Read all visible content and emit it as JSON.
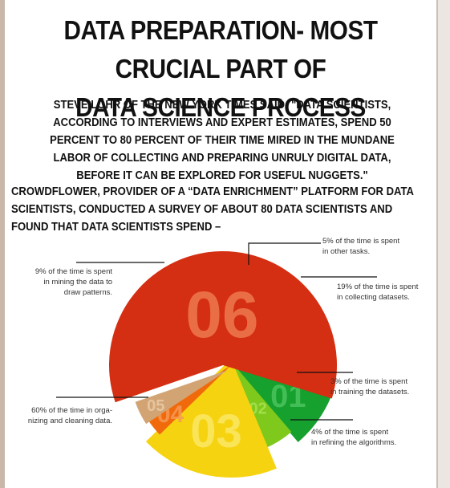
{
  "title_lines": [
    "DATA PREPARATION- MOST CRUCIAL PART OF",
    "DATA SCIENCE PROCESS"
  ],
  "quote": "STEVE LOHR OF THE NEW YORK TIMES SAID: \"DATA SCIENTISTS, ACCORDING TO INTERVIEWS AND EXPERT ESTIMATES, SPEND 50 PERCENT TO 80 PERCENT OF THEIR TIME MIRED IN THE MUNDANE LABOR OF COLLECTING AND PREPARING UNRULY DIGITAL DATA, BEFORE IT CAN BE EXPLORED FOR USEFUL NUGGETS.\"",
  "intro": "CROWDFLOWER, PROVIDER OF A “DATA ENRICHMENT” PLATFORM FOR DATA SCIENTISTS, CONDUCTED A SURVEY OF ABOUT 80 DATA SCIENTISTS AND FOUND THAT DATA SCIENTISTS SPEND –",
  "chart_data": {
    "type": "pie",
    "slices": [
      {
        "number": "01",
        "value": 9,
        "color": "#16a02e",
        "numColor": "#4cc45f",
        "label": [
          "9% of the time is spent",
          "in mining the data to",
          "draw patterns."
        ]
      },
      {
        "number": "02",
        "value": 5,
        "color": "#7ec91c",
        "numColor": "#a8e255",
        "label": [
          "5% of the time is spent",
          "in other tasks."
        ]
      },
      {
        "number": "03",
        "value": 19,
        "color": "#f6d311",
        "numColor": "#fbe765",
        "label": [
          "19% of the time is spent",
          "in collecting datasets."
        ]
      },
      {
        "number": "04",
        "value": 3,
        "color": "#f06a0c",
        "numColor": "#f79a55",
        "label": [
          "3% of the time is spent",
          "in training the datasets."
        ]
      },
      {
        "number": "05",
        "value": 4,
        "color": "#d2a474",
        "numColor": "#e9cba8",
        "label": [
          "4% of the time is spent",
          "in refining the algorithms."
        ]
      },
      {
        "number": "06",
        "value": 60,
        "color": "#d42f12",
        "numColor": "#ef7a4e",
        "label": [
          "60% of the time in orga-",
          "nizing and cleaning data."
        ]
      }
    ]
  }
}
